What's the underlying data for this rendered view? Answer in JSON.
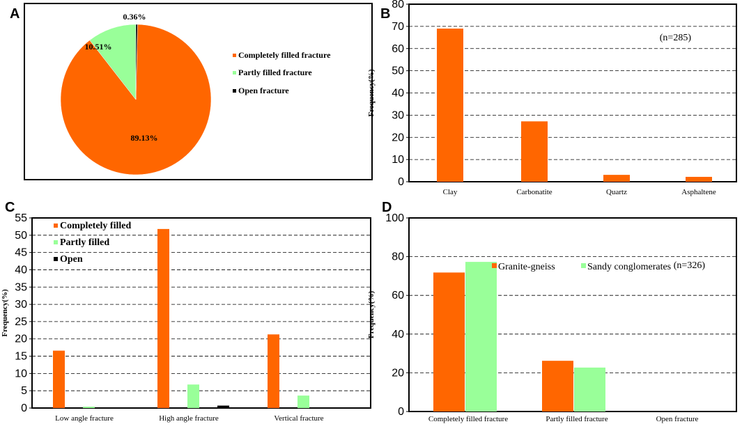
{
  "colors": {
    "completely": "#ff6600",
    "partly": "#99ff99",
    "open": "#000000",
    "axis": "#000000"
  },
  "chart_data": [
    {
      "panel": "A",
      "type": "pie",
      "title": "",
      "slices": [
        {
          "label": "Completely filled fracture",
          "value": 89.13,
          "value_label": "89.13%"
        },
        {
          "label": "Partly filled fracture",
          "value": 10.51,
          "value_label": "10.51%"
        },
        {
          "label": "Open fracture",
          "value": 0.36,
          "value_label": "0.36%"
        }
      ],
      "legend_position": "right"
    },
    {
      "panel": "B",
      "type": "bar",
      "categories": [
        "Clay",
        "Carbonatite",
        "Quartz",
        "Asphaltene"
      ],
      "values": [
        69,
        27.2,
        3.1,
        2.2
      ],
      "xlabel": "",
      "ylabel": "Frequency(%)",
      "ylim": [
        0,
        80
      ],
      "yticks": [
        0,
        10,
        20,
        30,
        40,
        50,
        60,
        70,
        80
      ],
      "grid": true,
      "annotation": "(n=285)"
    },
    {
      "panel": "C",
      "type": "bar",
      "categories": [
        "Low angle fracture",
        "High angle fracture",
        "Vertical fracture"
      ],
      "series": [
        {
          "name": "Completely filled",
          "values": [
            16.6,
            51.8,
            21.3
          ]
        },
        {
          "name": "Partly filled",
          "values": [
            0.4,
            6.8,
            3.6
          ]
        },
        {
          "name": "Open",
          "values": [
            0,
            0.7,
            0
          ]
        }
      ],
      "xlabel": "",
      "ylabel": "Frequency(%)",
      "ylim": [
        0,
        55
      ],
      "yticks": [
        0,
        5,
        10,
        15,
        20,
        25,
        30,
        35,
        40,
        45,
        50,
        55
      ],
      "grid": true,
      "legend_position": "top-left"
    },
    {
      "panel": "D",
      "type": "bar",
      "categories": [
        "Completely filled fracture",
        "Partly filled fracture",
        "Open fracture"
      ],
      "series": [
        {
          "name": "Granite-gneiss",
          "values": [
            71.8,
            26.2,
            0
          ]
        },
        {
          "name": "Sandy conglomerates",
          "values": [
            77.3,
            22.7,
            0
          ]
        }
      ],
      "xlabel": "",
      "ylabel": "Frequency(%)",
      "ylim": [
        0,
        100
      ],
      "yticks": [
        0,
        20,
        40,
        60,
        80,
        100
      ],
      "grid": true,
      "legend_position": "top",
      "annotation": "(n=326)"
    }
  ],
  "panel_labels": [
    "A",
    "B",
    "C",
    "D"
  ]
}
